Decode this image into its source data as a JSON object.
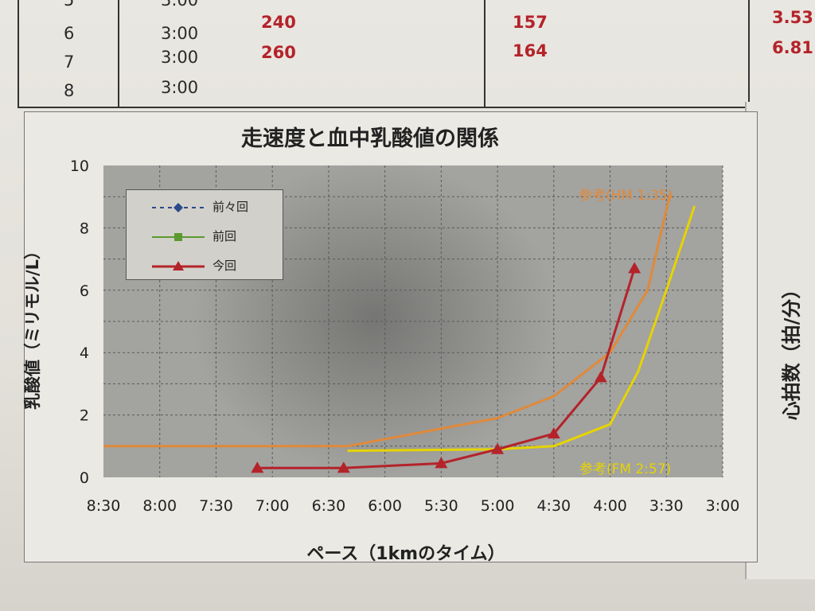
{
  "table": {
    "rows": [
      {
        "no": "5",
        "time": "3:00",
        "c1": "",
        "c2": "",
        "c3": "3.53"
      },
      {
        "no": "6",
        "time": "3:00",
        "c1": "240",
        "c2": "157",
        "c3": "3.53"
      },
      {
        "no": "7",
        "time": "3:00",
        "c1": "260",
        "c2": "164",
        "c3": "6.81"
      },
      {
        "no": "8",
        "time": "3:00",
        "c1": "",
        "c2": "",
        "c3": ""
      }
    ]
  },
  "chart_data": {
    "type": "line",
    "title": "走速度と血中乳酸値の関係",
    "xlabel": "ペース（1kmのタイム）",
    "ylabel": "乳酸値（ミリモル/L）",
    "right_label": "心拍数（拍/分）",
    "x_ticks": [
      "8:30",
      "8:00",
      "7:30",
      "7:00",
      "6:30",
      "6:00",
      "5:30",
      "5:00",
      "4:30",
      "4:00",
      "3:30",
      "3:00"
    ],
    "y_ticks": [
      "0",
      "2",
      "4",
      "6",
      "8",
      "10"
    ],
    "xlim": [
      "8:30",
      "3:00"
    ],
    "ylim": [
      0,
      10
    ],
    "grid": true,
    "legend": {
      "placement": "top-left",
      "entries": [
        "前々回",
        "前回",
        "今回"
      ]
    },
    "colors": {
      "prev2": "#2a4a8a",
      "prev": "#5a9a30",
      "current": "#b4232a",
      "hm": "#e08a3a",
      "fm": "#e6d400",
      "plot_bg": "#a3a3a0"
    },
    "series": [
      {
        "name": "今回",
        "x": [
          "7:08",
          "6:22",
          "5:30",
          "5:00",
          "4:30",
          "4:05",
          "3:47"
        ],
        "y": [
          0.3,
          0.3,
          0.45,
          0.9,
          1.4,
          3.2,
          6.7
        ]
      },
      {
        "name": "参考(HM 1:35)",
        "x": [
          "8:30",
          "6:20",
          "5:00",
          "4:30",
          "4:00",
          "3:40",
          "3:28"
        ],
        "y": [
          1.0,
          1.0,
          1.9,
          2.6,
          4.0,
          6.0,
          9.1
        ]
      },
      {
        "name": "参考(FM 2:57)",
        "x": [
          "6:20",
          "5:00",
          "4:30",
          "4:00",
          "3:45",
          "3:30",
          "3:15"
        ],
        "y": [
          0.85,
          0.9,
          1.0,
          1.7,
          3.4,
          6.0,
          8.7
        ]
      }
    ],
    "annotations": [
      "参考(HM 1:35)",
      "参考(FM 2:57)"
    ]
  }
}
